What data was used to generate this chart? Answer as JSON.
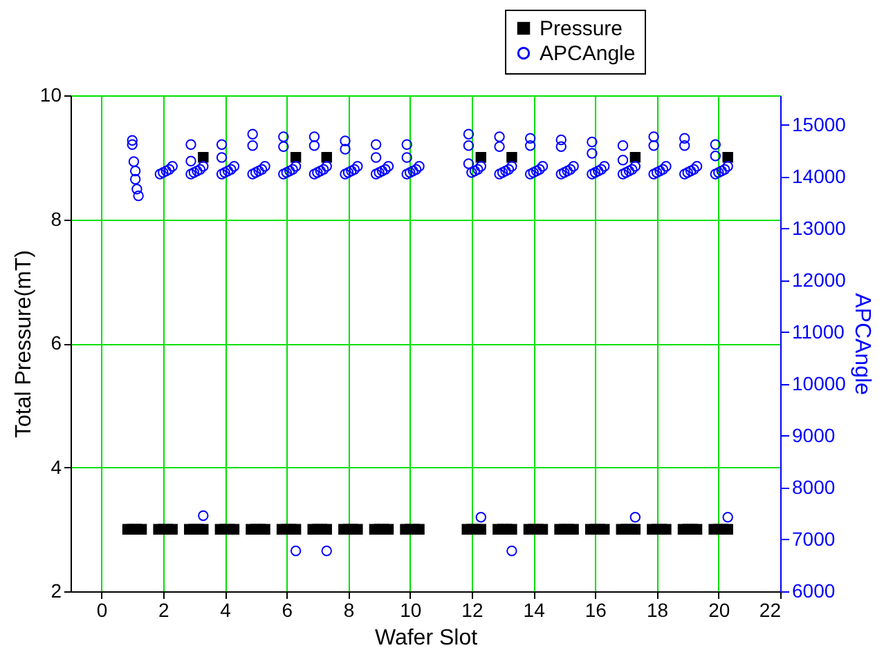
{
  "chart_data": {
    "type": "scatter",
    "xlabel": "Wafer Slot",
    "ylabel": "Total Pressure(mT)",
    "y2label": "APCAngle",
    "xlim": [
      -1,
      22
    ],
    "xticks": [
      0,
      2,
      4,
      6,
      8,
      10,
      12,
      14,
      16,
      18,
      20,
      22
    ],
    "ylim": [
      2,
      10
    ],
    "yticks": [
      2,
      4,
      6,
      8,
      10
    ],
    "y2lim": [
      6000,
      15570
    ],
    "y2ticks": [
      6000,
      7000,
      8000,
      9000,
      10000,
      11000,
      12000,
      13000,
      14000,
      15000
    ],
    "grid": true,
    "legend": "top right",
    "series": [
      {
        "name": "Pressure",
        "color": "#000000",
        "marker": "square",
        "x": [
          0.85,
          1,
          1.15,
          1.3,
          1.85,
          2,
          2.15,
          2.3,
          2.85,
          3,
          3.15,
          3.3,
          3.3,
          3.85,
          4,
          4.15,
          4.3,
          4.85,
          5,
          5.15,
          5.3,
          5.85,
          6,
          6.15,
          6.3,
          6.3,
          6.85,
          7,
          7.15,
          7.3,
          7.3,
          7.85,
          8,
          8.15,
          8.3,
          8.85,
          9,
          9.15,
          9.3,
          9.85,
          10,
          10.15,
          10.3,
          11.85,
          12,
          12.15,
          12.3,
          12.3,
          12.85,
          13,
          13.15,
          13.3,
          13.3,
          13.85,
          14,
          14.15,
          14.3,
          14.85,
          15,
          15.15,
          15.3,
          15.85,
          16,
          16.15,
          16.3,
          16.85,
          17,
          17.15,
          17.3,
          17.3,
          17.85,
          18,
          18.15,
          18.3,
          18.85,
          19,
          19.15,
          19.3,
          19.85,
          20,
          20.15,
          20.3,
          20.3
        ],
        "values": [
          3,
          3,
          3,
          3,
          3,
          3,
          3,
          3,
          3,
          3,
          3,
          3,
          9,
          3,
          3,
          3,
          3,
          3,
          3,
          3,
          3,
          3,
          3,
          3,
          3,
          9,
          3,
          3,
          3,
          3,
          9,
          3,
          3,
          3,
          3,
          3,
          3,
          3,
          3,
          3,
          3,
          3,
          3,
          3,
          3,
          3,
          3,
          9,
          3,
          3,
          3,
          3,
          9,
          3,
          3,
          3,
          3,
          3,
          3,
          3,
          3,
          3,
          3,
          3,
          3,
          3,
          3,
          3,
          3,
          9,
          3,
          3,
          3,
          3,
          3,
          3,
          3,
          3,
          3,
          3,
          3,
          3,
          9
        ]
      },
      {
        "name": "APCAngle",
        "color": "#0000ff",
        "marker": "circle",
        "axis": "y2",
        "x": [
          1,
          1,
          1.05,
          1.1,
          1.1,
          1.15,
          1.2,
          1.9,
          2,
          2.1,
          2.2,
          2.3,
          2.9,
          2.9,
          2.9,
          3,
          3.1,
          3.2,
          3.3,
          3.3,
          3.9,
          3.9,
          3.9,
          4,
          4.1,
          4.2,
          4.3,
          4.9,
          4.9,
          4.9,
          5,
          5.1,
          5.2,
          5.3,
          5.9,
          5.9,
          5.9,
          6,
          6.1,
          6.2,
          6.3,
          6.3,
          6.9,
          6.9,
          6.9,
          7,
          7.1,
          7.2,
          7.3,
          7.3,
          7.9,
          7.9,
          7.9,
          8,
          8.1,
          8.2,
          8.3,
          8.9,
          8.9,
          8.9,
          9,
          9.1,
          9.2,
          9.3,
          9.9,
          9.9,
          9.9,
          10,
          10.1,
          10.2,
          10.3,
          11.9,
          11.9,
          11.9,
          12,
          12.1,
          12.2,
          12.3,
          12.3,
          12.9,
          12.9,
          12.9,
          13,
          13.1,
          13.2,
          13.3,
          13.3,
          13.9,
          13.9,
          13.9,
          14,
          14.1,
          14.2,
          14.3,
          14.9,
          14.9,
          14.9,
          15,
          15.1,
          15.2,
          15.3,
          15.9,
          15.9,
          15.9,
          16,
          16.1,
          16.2,
          16.3,
          16.9,
          16.9,
          16.9,
          17,
          17.1,
          17.2,
          17.3,
          17.3,
          17.9,
          17.9,
          17.9,
          18,
          18.1,
          18.2,
          18.3,
          18.9,
          18.9,
          18.9,
          19,
          19.1,
          19.2,
          19.3,
          19.9,
          19.9,
          19.9,
          20,
          20.1,
          20.2,
          20.3,
          20.3
        ],
        "values": [
          14700,
          14620,
          14290,
          14110,
          13950,
          13760,
          13630,
          14050,
          14080,
          14110,
          14140,
          14200,
          14620,
          14300,
          14050,
          14080,
          14110,
          14140,
          14200,
          7460,
          14620,
          14370,
          14050,
          14080,
          14110,
          14140,
          14200,
          14820,
          14600,
          14050,
          14080,
          14110,
          14140,
          14200,
          14770,
          14580,
          14050,
          14080,
          14110,
          14140,
          14200,
          6780,
          14770,
          14600,
          14050,
          14080,
          14110,
          14140,
          14200,
          6780,
          14690,
          14530,
          14050,
          14080,
          14110,
          14140,
          14200,
          14620,
          14370,
          14050,
          14080,
          14110,
          14140,
          14200,
          14620,
          14370,
          14050,
          14080,
          14110,
          14140,
          14200,
          14820,
          14600,
          14250,
          14080,
          14110,
          14140,
          14200,
          7430,
          14770,
          14580,
          14050,
          14080,
          14110,
          14140,
          14200,
          6780,
          14740,
          14600,
          14050,
          14080,
          14110,
          14140,
          14200,
          14710,
          14580,
          14050,
          14080,
          14110,
          14140,
          14200,
          14670,
          14450,
          14050,
          14080,
          14110,
          14140,
          14200,
          14600,
          14320,
          14050,
          14080,
          14110,
          14140,
          14200,
          7430,
          14770,
          14600,
          14050,
          14080,
          14110,
          14140,
          14200,
          14740,
          14600,
          14050,
          14080,
          14110,
          14140,
          14200,
          14620,
          14400,
          14050,
          14080,
          14110,
          14140,
          14200,
          7430
        ]
      }
    ]
  }
}
